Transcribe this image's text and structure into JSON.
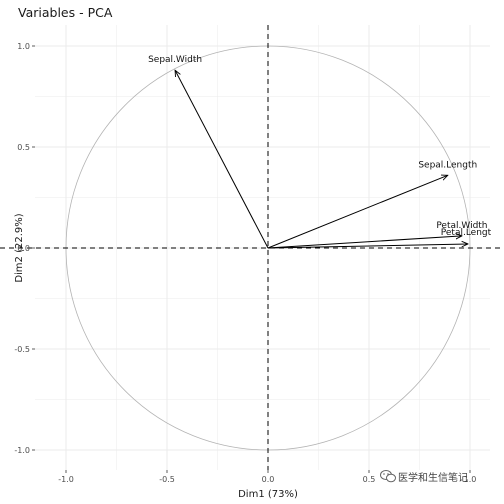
{
  "chart_data": {
    "type": "scatter",
    "subtype": "pca-variable-correlation-circle",
    "title": "Variables - PCA",
    "xlabel": "Dim1 (73%)",
    "ylabel": "Dim2 (22.9%)",
    "xlim": [
      -1.0,
      1.0
    ],
    "ylim": [
      -1.0,
      1.0
    ],
    "x_ticks": [
      -1.0,
      -0.5,
      0.0,
      0.5,
      1.0
    ],
    "x_tick_labels": [
      "-1.0",
      "-0.5",
      "0.0",
      "0.5",
      "1.0"
    ],
    "y_ticks": [
      -1.0,
      -0.5,
      0.0,
      0.5,
      1.0
    ],
    "y_tick_labels": [
      "-1.0",
      "-0.5",
      "0.0",
      "0.5",
      "1.0"
    ],
    "grid": true,
    "unit_circle": true,
    "reference_lines": {
      "x": 0,
      "y": 0,
      "style": "dashed"
    },
    "variables": [
      {
        "name": "Sepal.Length",
        "x": 0.89,
        "y": 0.36
      },
      {
        "name": "Sepal.Width",
        "x": -0.46,
        "y": 0.88
      },
      {
        "name": "Petal.Width",
        "x": 0.96,
        "y": 0.06
      },
      {
        "name": "Petal.Length",
        "label": "Petal.Lengt",
        "x": 0.99,
        "y": 0.02
      }
    ],
    "colors": {
      "grid": "#ebebeb",
      "circle": "#b3b3b3",
      "arrow": "#000000",
      "text": "#1a1a1a"
    }
  },
  "watermark": {
    "text": "医学和生信笔记",
    "icon": "wechat-icon"
  }
}
